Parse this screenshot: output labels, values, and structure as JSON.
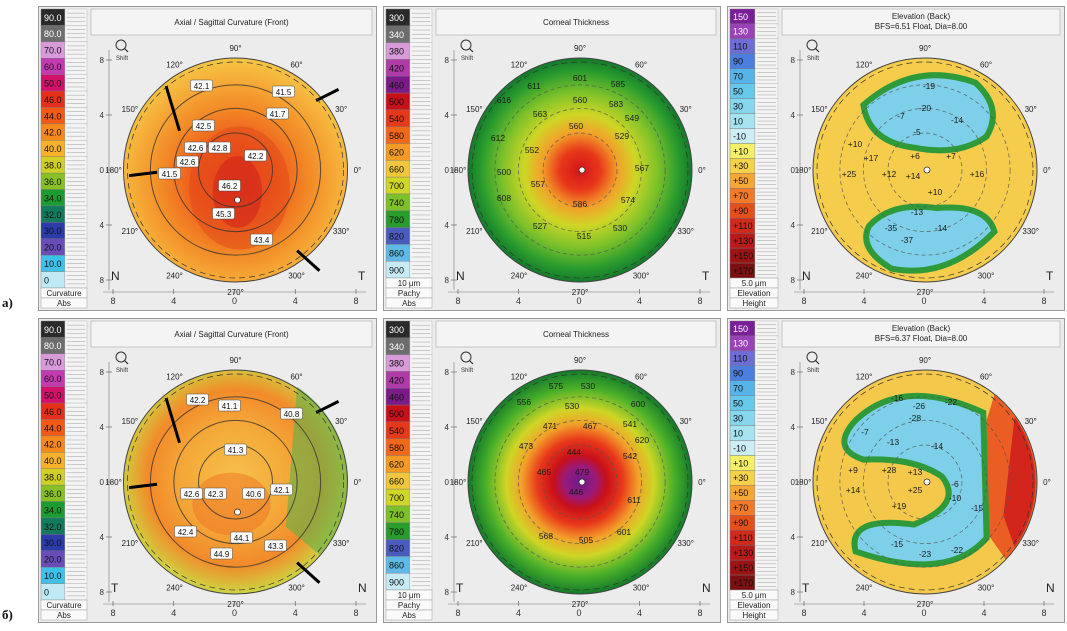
{
  "rows": [
    {
      "label": "а)",
      "panels": [
        {
          "kind": "curvature",
          "title": [
            "Axial / Sagittal Curvature (Front)"
          ],
          "scale": [
            "90.0",
            "80.0",
            "70.0",
            "60.0",
            "50.0",
            "46.0",
            "44.0",
            "42.0",
            "40.0",
            "38.0",
            "36.0",
            "34.0",
            "32.0",
            "30.0",
            "20.0",
            "10.0",
            "0"
          ],
          "scale_footer": [
            "Curvature",
            "Abs"
          ],
          "left_dir": "N",
          "right_dir": "T",
          "values": [
            "42.1",
            "42.5",
            "42.6",
            "42.6",
            "41.5",
            "41.7",
            "41.5",
            "42.2",
            "46.2",
            "45.3",
            "43.4",
            "42.8"
          ]
        },
        {
          "kind": "thickness",
          "title": [
            "Corneal Thickness"
          ],
          "scale": [
            "300",
            "340",
            "380",
            "420",
            "460",
            "500",
            "540",
            "580",
            "620",
            "660",
            "700",
            "740",
            "780",
            "820",
            "860",
            "900"
          ],
          "scale_footer": [
            "10 µm",
            "Pachy",
            "Abs"
          ],
          "left_dir": "N",
          "right_dir": "T",
          "values": [
            "601",
            "585",
            "560",
            "611",
            "583",
            "563",
            "560",
            "616",
            "612",
            "552",
            "529",
            "500",
            "567",
            "557",
            "608",
            "586",
            "574",
            "527",
            "530",
            "515",
            "549"
          ]
        },
        {
          "kind": "elevation",
          "title": [
            "Elevation (Back)",
            "BFS=6.51 Float, Dia=8.00"
          ],
          "scale": [
            "150",
            "130",
            "110",
            "90",
            "70",
            "50",
            "30",
            "10",
            "-10",
            "+10",
            "+30",
            "+50",
            "+70",
            "+90",
            "+110",
            "+130",
            "+150",
            "+170"
          ],
          "scale_footer": [
            "5.0 µm",
            "Elevation",
            "Height"
          ],
          "left_dir": "N",
          "right_dir": "T",
          "values": [
            "-19",
            "-20",
            "-14",
            "-7",
            "-5",
            "+10",
            "+17",
            "+6",
            "+7",
            "+25",
            "+12",
            "+14",
            "+16",
            "+10",
            "-13",
            "-35",
            "-14",
            "-37"
          ]
        }
      ]
    },
    {
      "label": "б)",
      "panels": [
        {
          "kind": "curvature",
          "title": [
            "Axial / Sagittal Curvature (Front)"
          ],
          "scale": [
            "90.0",
            "80.0",
            "70.0",
            "60.0",
            "50.0",
            "46.0",
            "44.0",
            "42.0",
            "40.0",
            "38.0",
            "36.0",
            "34.0",
            "32.0",
            "30.0",
            "20.0",
            "10.0",
            "0"
          ],
          "scale_footer": [
            "Curvature",
            "Abs"
          ],
          "left_dir": "T",
          "right_dir": "N",
          "values": [
            "42.2",
            "41.1",
            "40.8",
            "41.3",
            "42.6",
            "42.3",
            "40.6",
            "42.1",
            "42.4",
            "44.1",
            "43.3",
            "44.9"
          ]
        },
        {
          "kind": "thickness",
          "title": [
            "Corneal Thickness"
          ],
          "scale": [
            "300",
            "340",
            "380",
            "420",
            "460",
            "500",
            "540",
            "580",
            "620",
            "660",
            "700",
            "740",
            "780",
            "820",
            "860",
            "900"
          ],
          "scale_footer": [
            "10 µm",
            "Pachy",
            "Abs"
          ],
          "left_dir": "T",
          "right_dir": "N",
          "values": [
            "575",
            "530",
            "556",
            "530",
            "600",
            "471",
            "467",
            "541",
            "473",
            "444",
            "542",
            "479",
            "465",
            "446",
            "611",
            "568",
            "505",
            "601",
            "620"
          ]
        },
        {
          "kind": "elevation",
          "title": [
            "Elevation (Back)",
            "BFS=6.37 Float, Dia=8.00"
          ],
          "scale": [
            "150",
            "130",
            "110",
            "90",
            "70",
            "50",
            "30",
            "10",
            "-10",
            "+10",
            "+30",
            "+50",
            "+70",
            "+90",
            "+110",
            "+130",
            "+150",
            "+170"
          ],
          "scale_footer": [
            "5.0 µm",
            "Elevation",
            "Height"
          ],
          "left_dir": "T",
          "right_dir": "N",
          "values": [
            "-16",
            "-26",
            "-22",
            "-28",
            "-7",
            "-13",
            "-14",
            "+9",
            "+28",
            "+13",
            "+14",
            "+25",
            "-6",
            "+19",
            "-10",
            "-15",
            "-15",
            "-23",
            "-22"
          ]
        }
      ]
    }
  ],
  "angles": [
    "90°",
    "60°",
    "30°",
    "0°",
    "330°",
    "300°",
    "270°",
    "240°",
    "210°",
    "180°",
    "150°",
    "120°"
  ],
  "axis_ticks": [
    "8",
    "4",
    "0",
    "4",
    "8"
  ],
  "side_ticks": [
    "8",
    "4",
    "0",
    "4",
    "8"
  ],
  "zoom_label": "Shift",
  "colors": {
    "curv": [
      "#2a2a2a",
      "#6d6d6d",
      "#d89ad8",
      "#c23bb0",
      "#d3106a",
      "#e62e1a",
      "#f05a16",
      "#f48a1c",
      "#f6b02a",
      "#cfcf26",
      "#86c025",
      "#1b9c31",
      "#137a5d",
      "#2a3ca8",
      "#6a4cb8",
      "#3fc0e8",
      "#bfe9f4"
    ],
    "pachy": [
      "#2a2a2a",
      "#6d6d6d",
      "#d89ad8",
      "#b03aa8",
      "#7c1a8a",
      "#c8101a",
      "#e8381a",
      "#f2681a",
      "#f59a22",
      "#f2c63a",
      "#cfd626",
      "#7cc12a",
      "#2a9c2e",
      "#4a5cc0",
      "#5fb9e6",
      "#c7ecf6"
    ],
    "elev": [
      "#7a1e9a",
      "#9a40b8",
      "#6d6dd8",
      "#4a7ee0",
      "#56b4ea",
      "#66c8ea",
      "#86d6ee",
      "#a6e2f0",
      "#cdeef5",
      "#f4f06a",
      "#f6d24a",
      "#f6a636",
      "#f07a2a",
      "#e2501c",
      "#cf2a1a",
      "#b81a1a",
      "#9a1414",
      "#7a1010"
    ]
  }
}
